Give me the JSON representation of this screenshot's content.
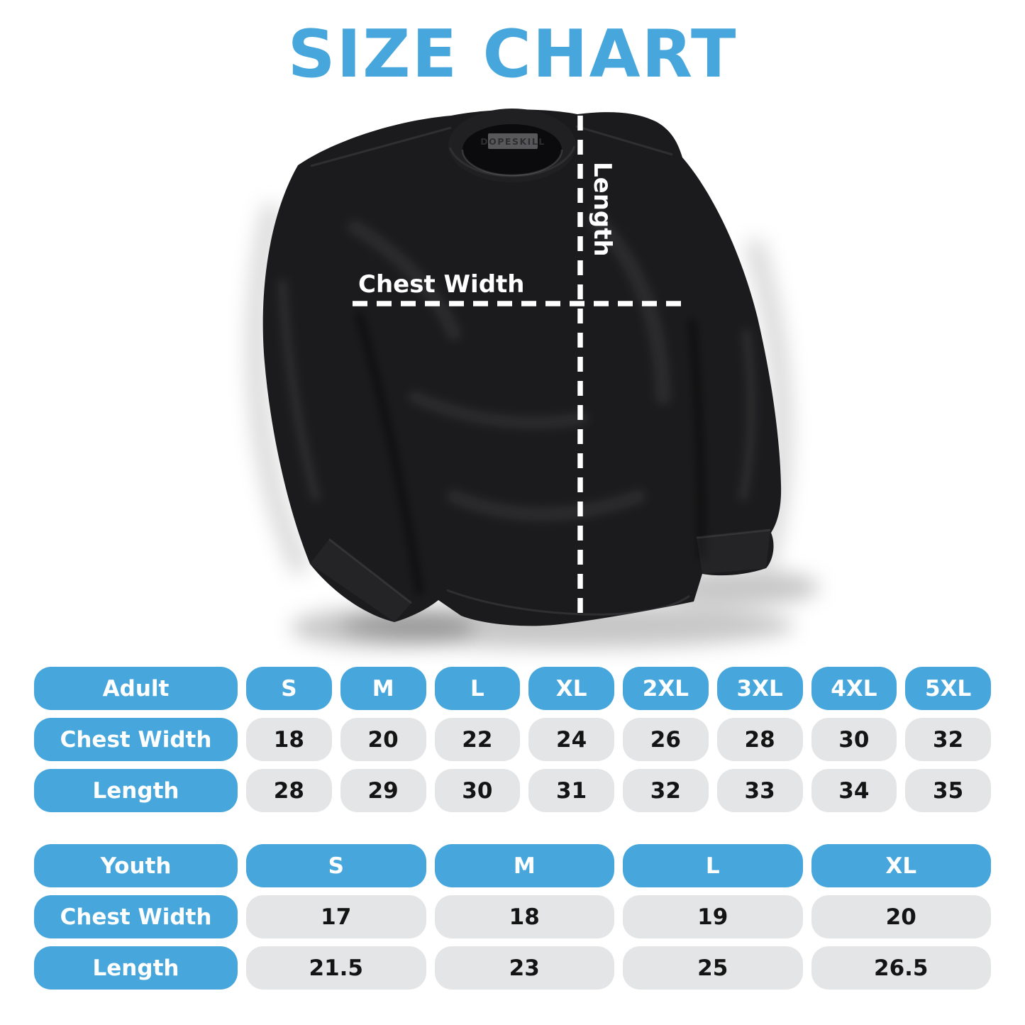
{
  "title": "SIZE CHART",
  "colors": {
    "accent_blue": "#47A7DC",
    "cell_gray": "#E4E5E6",
    "shirt_black": "#1B1B1D",
    "measure_line_white": "#FFFFFF"
  },
  "diagram": {
    "brand_label": "DOPESKILL",
    "chest_width_label": "Chest Width",
    "length_label": "Length"
  },
  "chart_data": {
    "type": "table",
    "title": "SIZE CHART",
    "tables": [
      {
        "group_label": "Adult",
        "columns": [
          "S",
          "M",
          "L",
          "XL",
          "2XL",
          "3XL",
          "4XL",
          "5XL"
        ],
        "rows": [
          {
            "label": "Chest Width",
            "values": [
              "18",
              "20",
              "22",
              "24",
              "26",
              "28",
              "30",
              "32"
            ]
          },
          {
            "label": "Length",
            "values": [
              "28",
              "29",
              "30",
              "31",
              "32",
              "33",
              "34",
              "35"
            ]
          }
        ]
      },
      {
        "group_label": "Youth",
        "columns": [
          "S",
          "M",
          "L",
          "XL"
        ],
        "rows": [
          {
            "label": "Chest Width",
            "values": [
              "17",
              "18",
              "19",
              "20"
            ]
          },
          {
            "label": "Length",
            "values": [
              "21.5",
              "23",
              "25",
              "26.5"
            ]
          }
        ]
      }
    ]
  }
}
